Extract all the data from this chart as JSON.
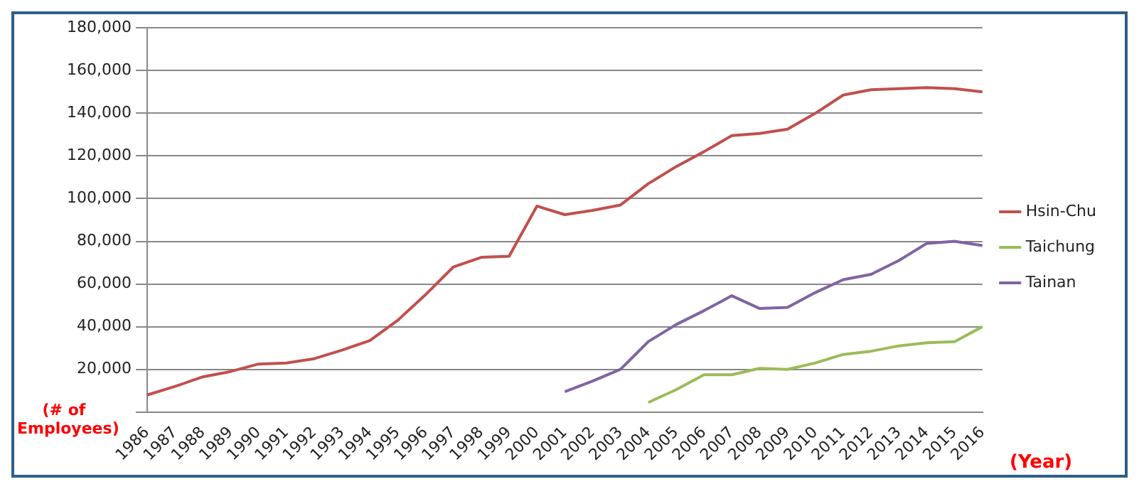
{
  "chart_data": {
    "type": "line",
    "xlabel": "(Year)",
    "ylabel": "(# of Employees)",
    "categories": [
      "1986",
      "1987",
      "1988",
      "1989",
      "1990",
      "1991",
      "1992",
      "1993",
      "1994",
      "1995",
      "1996",
      "1997",
      "1998",
      "1999",
      "2000",
      "2001",
      "2002",
      "2003",
      "2004",
      "2005",
      "2006",
      "2007",
      "2008",
      "2009",
      "2010",
      "2011",
      "2012",
      "2013",
      "2014",
      "2015",
      "2016"
    ],
    "series": [
      {
        "name": "Hsin-Chu",
        "color": "#c0504d",
        "values": [
          8000,
          12000,
          16500,
          19000,
          22500,
          23000,
          25000,
          29000,
          33500,
          43000,
          55000,
          68000,
          72500,
          73000,
          96500,
          92500,
          94500,
          97000,
          107000,
          115000,
          122000,
          129500,
          130500,
          132500,
          140000,
          148500,
          151000,
          151500,
          152000,
          151500,
          150000
        ]
      },
      {
        "name": "Taichung",
        "color": "#9bbb59",
        "values": [
          null,
          null,
          null,
          null,
          null,
          null,
          null,
          null,
          null,
          null,
          null,
          null,
          null,
          null,
          null,
          null,
          null,
          null,
          4500,
          10500,
          17500,
          17500,
          20500,
          20000,
          23000,
          27000,
          28500,
          31000,
          32500,
          33000,
          40000
        ]
      },
      {
        "name": "Tainan",
        "color": "#8064a2",
        "values": [
          null,
          null,
          null,
          null,
          null,
          null,
          null,
          null,
          null,
          null,
          null,
          null,
          null,
          null,
          null,
          9500,
          14500,
          20000,
          33000,
          41000,
          47500,
          54500,
          48500,
          49000,
          56000,
          62000,
          64500,
          71000,
          79000,
          80000,
          78000
        ]
      }
    ],
    "ylim": [
      0,
      180000
    ],
    "yticks": [
      {
        "value": 0,
        "label": null
      },
      {
        "value": 20000,
        "label": "20,000"
      },
      {
        "value": 40000,
        "label": "40,000"
      },
      {
        "value": 60000,
        "label": "60,000"
      },
      {
        "value": 80000,
        "label": "80,000"
      },
      {
        "value": 100000,
        "label": "100,000"
      },
      {
        "value": 120000,
        "label": "120,000"
      },
      {
        "value": 140000,
        "label": "140,000"
      },
      {
        "value": 160000,
        "label": "160,000"
      },
      {
        "value": 180000,
        "label": "180,000"
      }
    ],
    "grid": "y",
    "legend": "right",
    "marker": "none",
    "line_style": "solid"
  }
}
